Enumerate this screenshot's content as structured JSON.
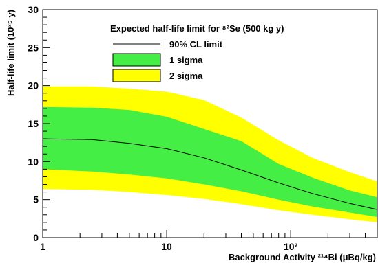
{
  "chart_data": {
    "type": "area",
    "title": "Expected half-life limit for ⁸²Se (500 kg y)",
    "xlabel": "Background Activity ²¹⁴Bi (μBq/kg)",
    "ylabel": "Half-life limit (10²⁵ y)",
    "x_scale": "log",
    "xlim": [
      1,
      500
    ],
    "ylim": [
      0,
      30
    ],
    "x_ticks": [
      {
        "value": 1,
        "label": "1"
      },
      {
        "value": 10,
        "label": "10"
      },
      {
        "value": 100,
        "label": "10²"
      }
    ],
    "y_ticks": [
      {
        "value": 0,
        "label": "0"
      },
      {
        "value": 5,
        "label": "5"
      },
      {
        "value": 10,
        "label": "10"
      },
      {
        "value": 15,
        "label": "15"
      },
      {
        "value": 20,
        "label": "20"
      },
      {
        "value": 25,
        "label": "25"
      },
      {
        "value": 30,
        "label": "30"
      }
    ],
    "grid": false,
    "legend_position": "top-center",
    "series": [
      {
        "name": "2 sigma",
        "role": "band",
        "color": "#ffff00",
        "x": [
          1,
          2.5,
          5,
          10,
          20,
          40,
          80,
          150,
          300,
          500
        ],
        "upper": [
          19.9,
          19.9,
          19.6,
          19.2,
          18.1,
          15.8,
          12.8,
          10.5,
          8.6,
          7.4
        ],
        "lower": [
          6.4,
          6.3,
          6.0,
          5.6,
          5.1,
          4.4,
          3.6,
          3.0,
          2.4,
          2.0
        ]
      },
      {
        "name": "1 sigma",
        "role": "band",
        "color": "#44ee44",
        "x": [
          1,
          2.5,
          5,
          10,
          20,
          40,
          80,
          150,
          300,
          500
        ],
        "upper": [
          17.2,
          17.1,
          16.8,
          15.9,
          14.3,
          12.7,
          9.7,
          7.9,
          6.2,
          5.3
        ],
        "lower": [
          9.0,
          8.7,
          8.3,
          7.8,
          7.0,
          6.1,
          5.0,
          4.1,
          3.3,
          2.7
        ]
      },
      {
        "name": "90% CL limit",
        "role": "line",
        "color": "#000000",
        "x": [
          1,
          2.5,
          5,
          10,
          20,
          40,
          80,
          150,
          300,
          500
        ],
        "y": [
          13.0,
          12.9,
          12.4,
          11.7,
          10.5,
          8.9,
          7.2,
          5.8,
          4.5,
          3.7
        ]
      }
    ]
  }
}
